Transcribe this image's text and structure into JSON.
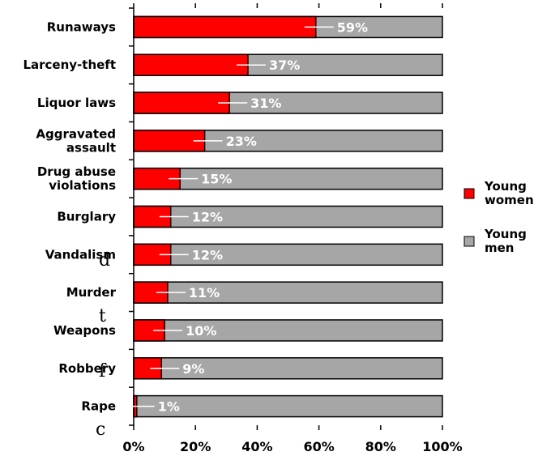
{
  "chart_data": {
    "type": "bar",
    "orientation": "horizontal",
    "stacked": true,
    "percent_stacked": true,
    "categories": [
      [
        "Runaways"
      ],
      [
        "Larceny-theft"
      ],
      [
        "Liquor laws"
      ],
      [
        "Aggravated",
        "assault"
      ],
      [
        "Drug abuse",
        "violations"
      ],
      [
        "Burglary"
      ],
      [
        "Vandalism"
      ],
      [
        "Murder"
      ],
      [
        "Weapons"
      ],
      [
        "Robbery"
      ],
      [
        "Rape"
      ]
    ],
    "series": [
      {
        "name": "Young women",
        "color": "#ff0000",
        "values": [
          59,
          37,
          31,
          23,
          15,
          12,
          12,
          11,
          10,
          9,
          1
        ]
      },
      {
        "name": "Young men",
        "color": "#a6a6a6",
        "values": [
          41,
          63,
          69,
          77,
          85,
          88,
          88,
          89,
          90,
          91,
          99
        ]
      }
    ],
    "data_labels": [
      "59%",
      "37%",
      "31%",
      "23%",
      "15%",
      "12%",
      "12%",
      "11%",
      "10%",
      "9%",
      "1%"
    ],
    "x_ticks": [
      "0%",
      "20%",
      "40%",
      "60%",
      "80%",
      "100%"
    ],
    "xlim": [
      0,
      100
    ],
    "legend": {
      "placement": "right",
      "entries": [
        [
          "Young",
          "women"
        ],
        [
          "Young",
          "men"
        ]
      ]
    },
    "grid": false
  },
  "background_fragments": [
    "d",
    "t",
    "f",
    "c"
  ]
}
